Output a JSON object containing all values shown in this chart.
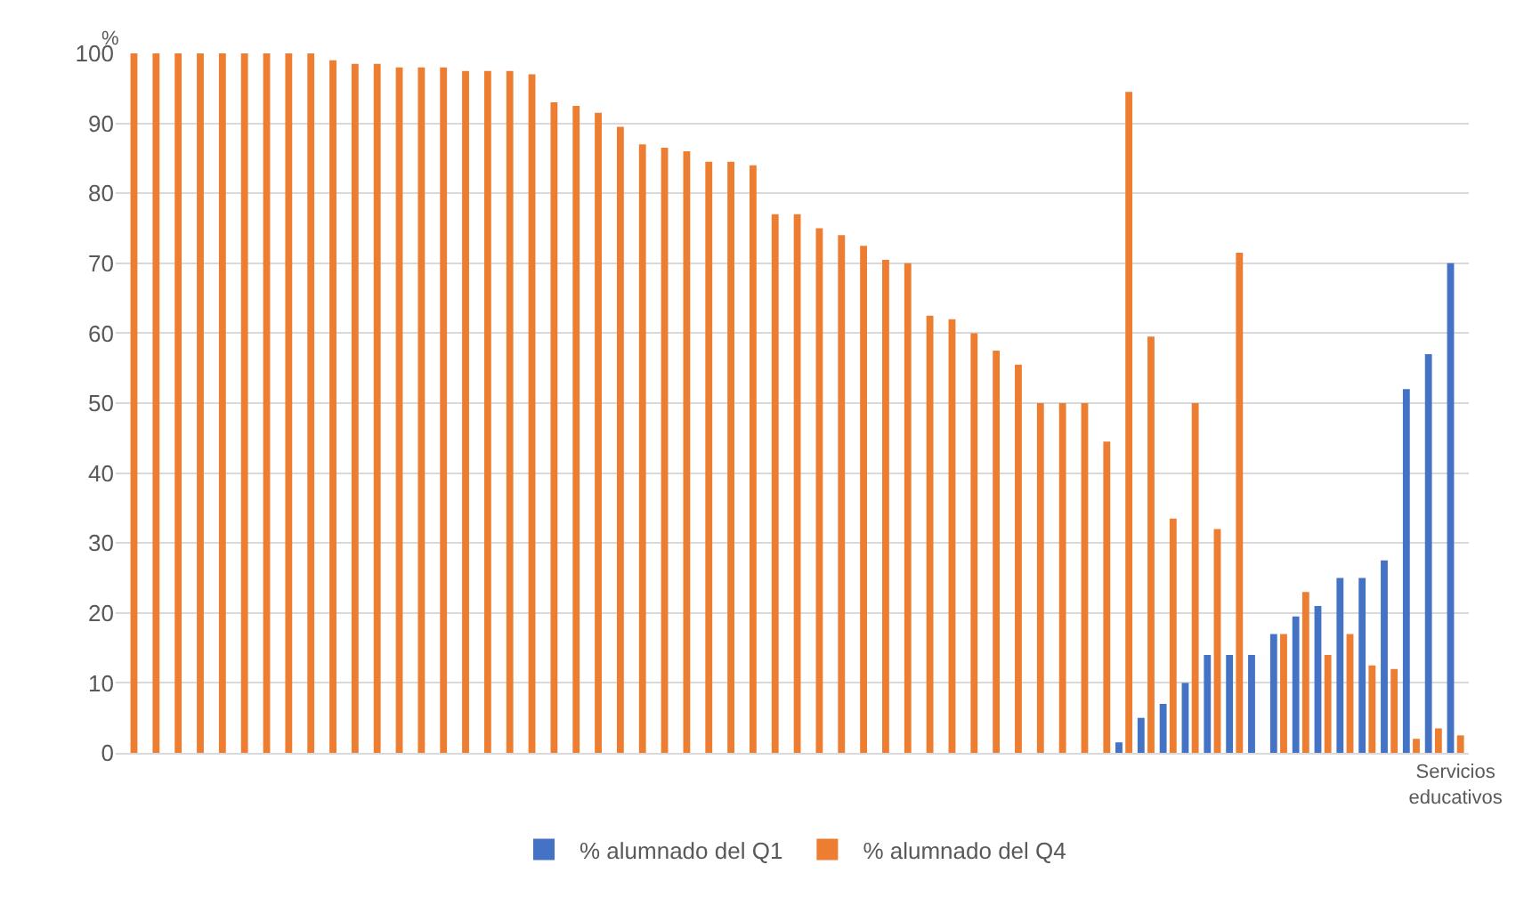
{
  "chart_data": {
    "type": "bar",
    "ylabel": "%",
    "categories": [
      null,
      null,
      null,
      null,
      null,
      null,
      null,
      null,
      null,
      null,
      null,
      null,
      null,
      null,
      null,
      null,
      null,
      null,
      null,
      null,
      null,
      null,
      null,
      null,
      null,
      null,
      null,
      null,
      null,
      null,
      null,
      null,
      null,
      null,
      null,
      null,
      null,
      null,
      null,
      null,
      null,
      null,
      null,
      null,
      null,
      null,
      null,
      null,
      null,
      null,
      null,
      null,
      null,
      null,
      null,
      null,
      null,
      null,
      null,
      null,
      "Servicios educativos"
    ],
    "series": [
      {
        "name": "% alumnado del Q1",
        "color": "#4472c4",
        "values": [
          null,
          null,
          null,
          null,
          null,
          null,
          null,
          null,
          null,
          null,
          null,
          null,
          null,
          null,
          null,
          null,
          null,
          null,
          null,
          null,
          null,
          null,
          null,
          null,
          null,
          null,
          null,
          null,
          null,
          null,
          null,
          null,
          null,
          null,
          null,
          null,
          null,
          null,
          null,
          null,
          null,
          null,
          null,
          null,
          null,
          1.5,
          5,
          7,
          10,
          14,
          14,
          14,
          17,
          19.5,
          21,
          25,
          25,
          27.5,
          52,
          57,
          70
        ]
      },
      {
        "name": "% alumnado del Q4",
        "color": "#ed7d31",
        "values": [
          100,
          100,
          100,
          100,
          100,
          100,
          100,
          100,
          100,
          99,
          98.5,
          98.5,
          98,
          98,
          98,
          97.5,
          97.5,
          97.5,
          97,
          93,
          92.5,
          91.5,
          89.5,
          87,
          86.5,
          86,
          84.5,
          84.5,
          84,
          77,
          77,
          75,
          74,
          72.5,
          70.5,
          70,
          62.5,
          62,
          60,
          57.5,
          55.5,
          50,
          50,
          50,
          44.5,
          94.5,
          59.5,
          33.5,
          50,
          32,
          71.5,
          null,
          17,
          23,
          14,
          17,
          12.5,
          12,
          2,
          3.5,
          2.5
        ]
      }
    ],
    "ylim": [
      0,
      100
    ],
    "yticks": [
      0,
      10,
      20,
      30,
      40,
      50,
      60,
      70,
      80,
      90,
      100
    ],
    "grid": "y",
    "legend": "bottom"
  }
}
